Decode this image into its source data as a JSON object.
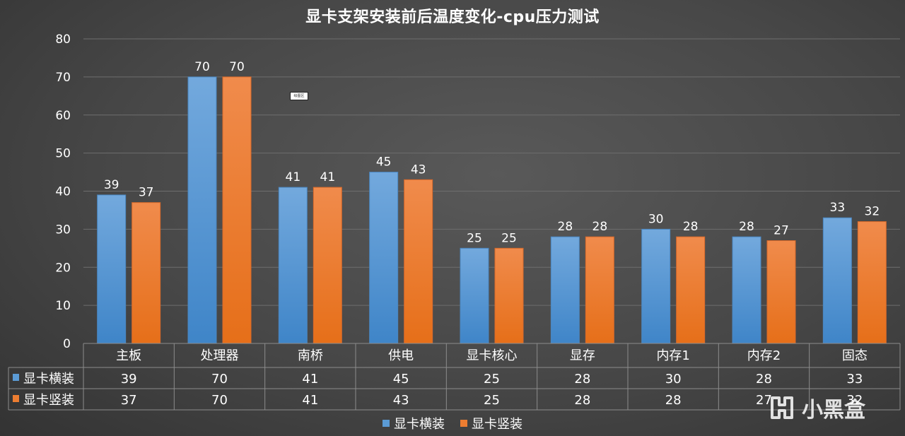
{
  "chart_data": {
    "type": "bar",
    "title": "显卡支架安装前后温度变化-cpu压力测试",
    "categories": [
      "主板",
      "处理器",
      "南桥",
      "供电",
      "显卡核心",
      "显存",
      "内存1",
      "内存2",
      "固态"
    ],
    "series": [
      {
        "name": "显卡横装",
        "values": [
          39,
          70,
          41,
          45,
          25,
          28,
          30,
          28,
          33
        ],
        "color": "#5b9bd5"
      },
      {
        "name": "显卡竖装",
        "values": [
          37,
          70,
          41,
          43,
          25,
          28,
          28,
          27,
          32
        ],
        "color": "#ed7d31"
      }
    ],
    "ylim": [
      0,
      80
    ],
    "yticks": [
      0,
      10,
      20,
      30,
      40,
      50,
      60,
      70,
      80
    ],
    "xlabel": "",
    "ylabel": "",
    "grid": true,
    "legend": "bottom",
    "data_table": true
  },
  "tooltip": {
    "text": "绘图区"
  },
  "watermark": {
    "text": "小黑盒",
    "icon": "heybox-logo-icon"
  }
}
